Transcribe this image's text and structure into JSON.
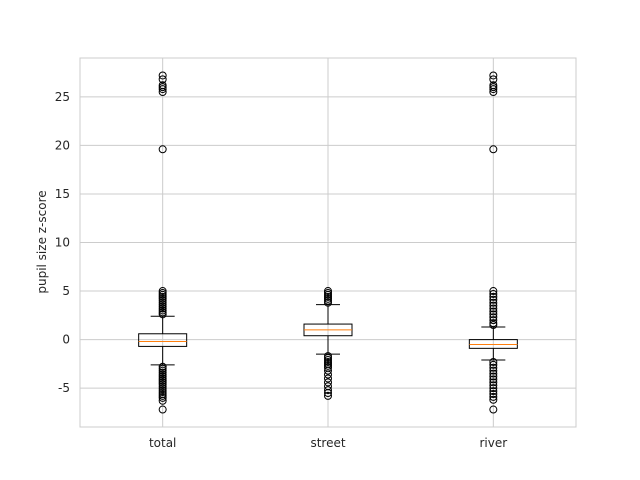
{
  "chart_data": {
    "type": "boxplot",
    "title": "",
    "xlabel": "",
    "ylabel": "pupil size z-score",
    "ylim": [
      -9,
      29
    ],
    "yticks": [
      -5,
      0,
      5,
      10,
      15,
      20,
      25
    ],
    "grid": true,
    "colors": {
      "box": "#000000",
      "median": "#ff7f0e",
      "grid": "#cccccc",
      "frame": "#cccccc",
      "text": "#262626"
    },
    "categories": [
      "total",
      "street",
      "river"
    ],
    "boxes": [
      {
        "label": "total",
        "whisker_low": -2.6,
        "q1": -0.7,
        "median": -0.2,
        "q3": 0.6,
        "whisker_high": 2.4,
        "outliers": [
          27.2,
          26.8,
          26.2,
          26.0,
          25.8,
          25.5,
          19.6,
          5.0,
          4.8,
          4.6,
          4.4,
          4.2,
          4.0,
          3.8,
          3.6,
          3.4,
          3.2,
          3.0,
          2.8,
          2.6,
          -2.8,
          -3.0,
          -3.2,
          -3.4,
          -3.6,
          -3.8,
          -4.0,
          -4.2,
          -4.4,
          -4.6,
          -4.8,
          -5.0,
          -5.2,
          -5.4,
          -5.6,
          -5.8,
          -6.0,
          -6.3,
          -7.2
        ]
      },
      {
        "label": "street",
        "whisker_low": -1.5,
        "q1": 0.4,
        "median": 1.0,
        "q3": 1.6,
        "whisker_high": 3.6,
        "outliers": [
          5.0,
          4.8,
          4.6,
          4.4,
          4.2,
          4.0,
          3.8,
          -1.7,
          -1.9,
          -2.1,
          -2.3,
          -2.5,
          -2.7,
          -2.9,
          -3.2,
          -3.6,
          -4.0,
          -4.4,
          -4.8,
          -5.2,
          -5.5,
          -5.8
        ]
      },
      {
        "label": "river",
        "whisker_low": -2.1,
        "q1": -0.9,
        "median": -0.5,
        "q3": 0.0,
        "whisker_high": 1.3,
        "outliers": [
          27.2,
          26.8,
          26.2,
          26.0,
          25.8,
          25.5,
          19.6,
          5.0,
          4.7,
          4.4,
          4.1,
          3.8,
          3.5,
          3.2,
          2.9,
          2.6,
          2.3,
          2.0,
          1.7,
          1.5,
          -2.3,
          -2.6,
          -2.9,
          -3.2,
          -3.5,
          -3.8,
          -4.1,
          -4.4,
          -4.7,
          -5.0,
          -5.3,
          -5.6,
          -5.9,
          -6.2,
          -7.2
        ]
      }
    ]
  }
}
